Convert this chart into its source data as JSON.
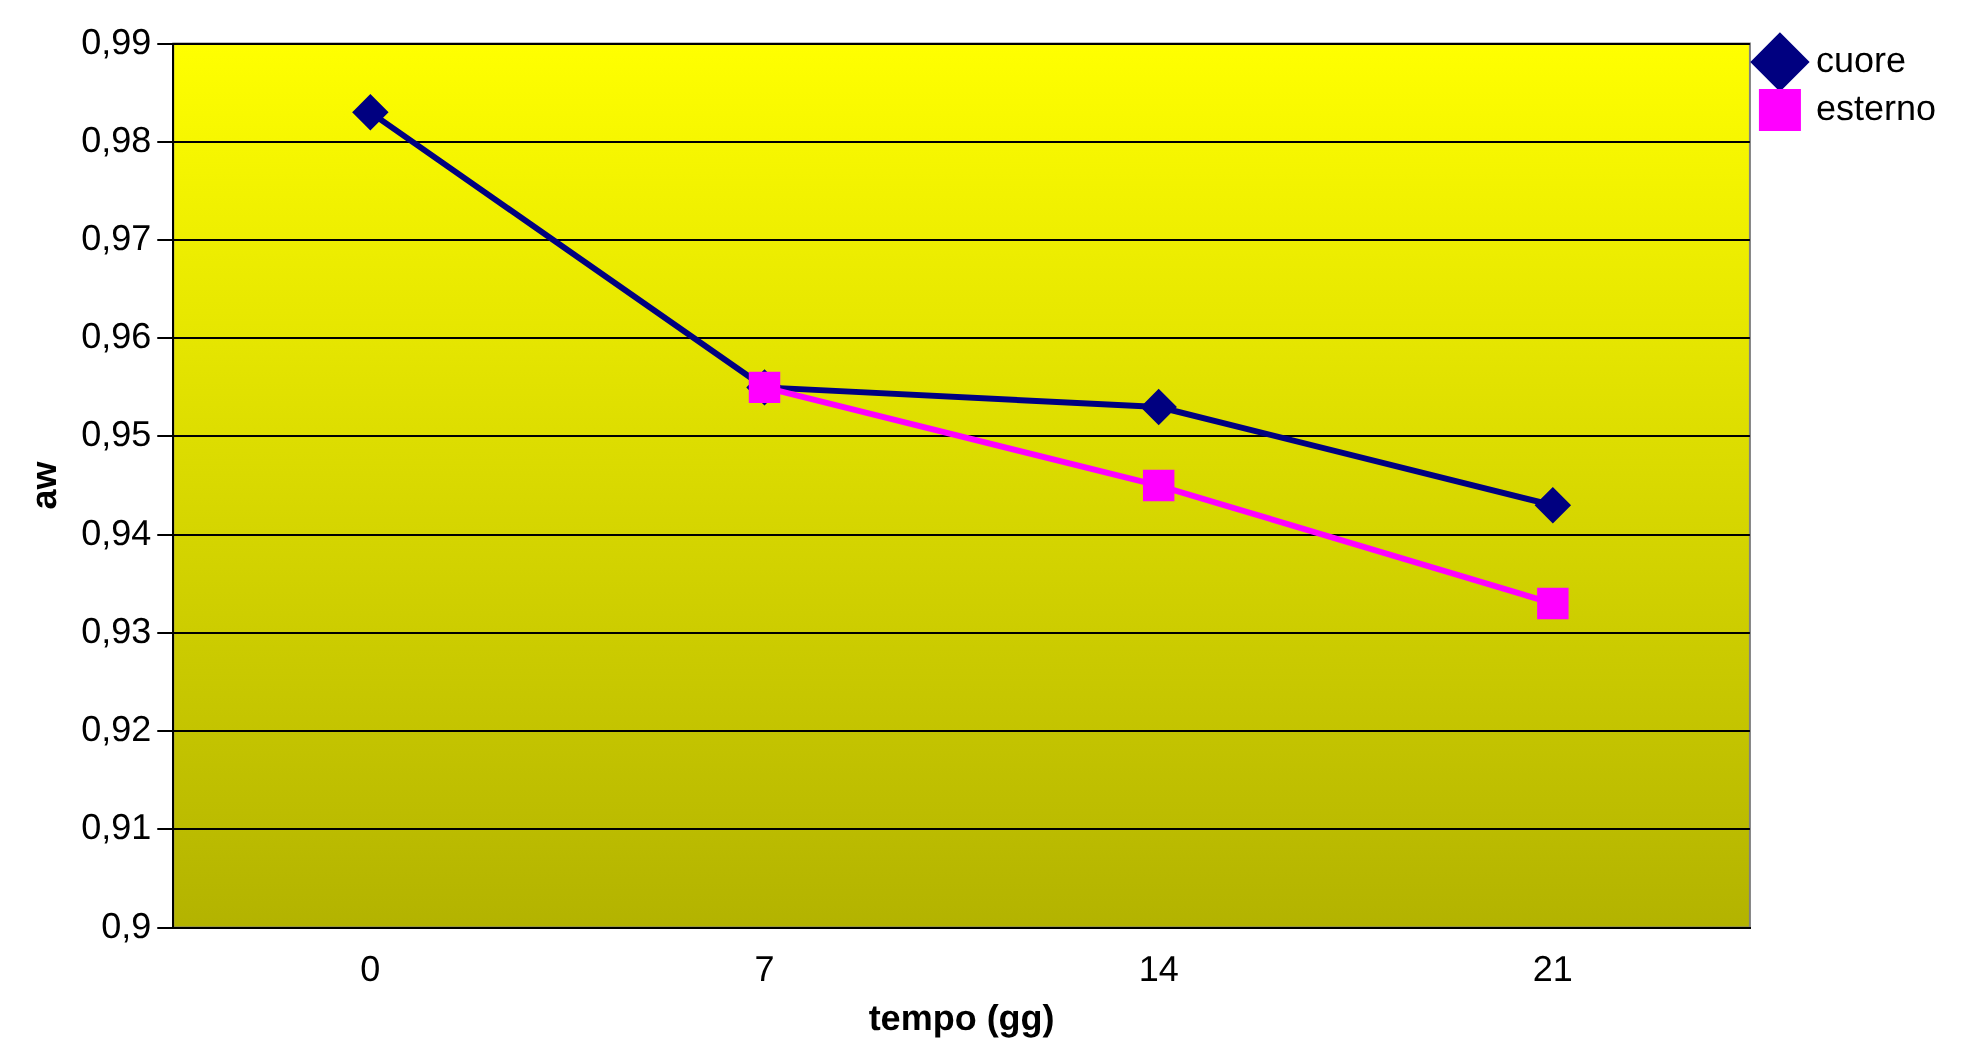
{
  "chart_data": {
    "type": "line",
    "xlabel": "tempo (gg)",
    "ylabel": "aw",
    "categories": [
      "0",
      "7",
      "14",
      "21"
    ],
    "series": [
      {
        "name": "cuore",
        "color": "#000080",
        "marker": "diamond",
        "values": [
          0.983,
          0.955,
          0.953,
          0.943
        ]
      },
      {
        "name": "esterno",
        "color": "#ff00ff",
        "marker": "square",
        "values": [
          null,
          0.955,
          0.945,
          0.933
        ]
      }
    ],
    "ylim": [
      0.9,
      0.99
    ],
    "yticks": [
      {
        "value": 0.9,
        "label": "0,9"
      },
      {
        "value": 0.91,
        "label": "0,91"
      },
      {
        "value": 0.92,
        "label": "0,92"
      },
      {
        "value": 0.93,
        "label": "0,93"
      },
      {
        "value": 0.94,
        "label": "0,94"
      },
      {
        "value": 0.95,
        "label": "0,95"
      },
      {
        "value": 0.96,
        "label": "0,96"
      },
      {
        "value": 0.97,
        "label": "0,97"
      },
      {
        "value": 0.98,
        "label": "0,98"
      },
      {
        "value": 0.99,
        "label": "0,99"
      }
    ],
    "grid": "y",
    "legend": "top right",
    "line_style": "solid"
  }
}
